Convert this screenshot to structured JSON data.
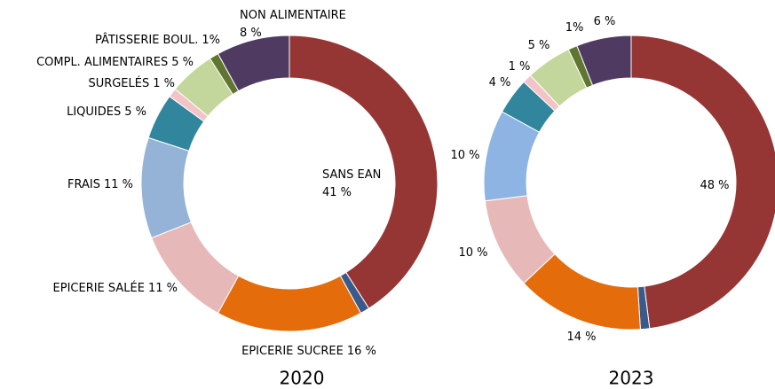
{
  "chart_data": [
    {
      "type": "donut",
      "title": "2020",
      "categories": [
        "SANS EAN",
        null,
        "EPICERIE SUCREE",
        "EPICERIE SALÉE",
        "FRAIS",
        "LIQUIDES",
        "SURGELÉS",
        "COMPL. ALIMENTAIRES",
        "PÂTISSERIE BOUL.",
        "NON ALIMENTAIRE"
      ],
      "values": [
        41,
        1,
        16,
        11,
        11,
        5,
        1,
        5,
        1,
        8
      ],
      "value_labels": [
        "41 %",
        null,
        "16 %",
        "11 %",
        "11 %",
        "5 %",
        "1 %",
        "5 %",
        "1%",
        "8 %"
      ],
      "colors": [
        "#963634",
        "#3a5a8c",
        "#e46c0a",
        "#e6b9b8",
        "#95b3d7",
        "#31859c",
        "#f2c4c8",
        "#c3d69b",
        "#5f7530",
        "#4f3b62"
      ]
    },
    {
      "type": "donut",
      "title": "2023",
      "values": [
        48,
        1,
        14,
        10,
        10,
        4,
        1,
        5,
        1,
        6
      ],
      "value_labels": [
        "48 %",
        null,
        "14 %",
        "10 %",
        "10 %",
        "4 %",
        "1 %",
        "5 %",
        "1%",
        "6 %"
      ],
      "colors": [
        "#963634",
        "#3a5a8c",
        "#e46c0a",
        "#e6b9b8",
        "#8db4e2",
        "#31859c",
        "#f2c4c8",
        "#c3d69b",
        "#5f7530",
        "#4f3b62"
      ]
    }
  ]
}
